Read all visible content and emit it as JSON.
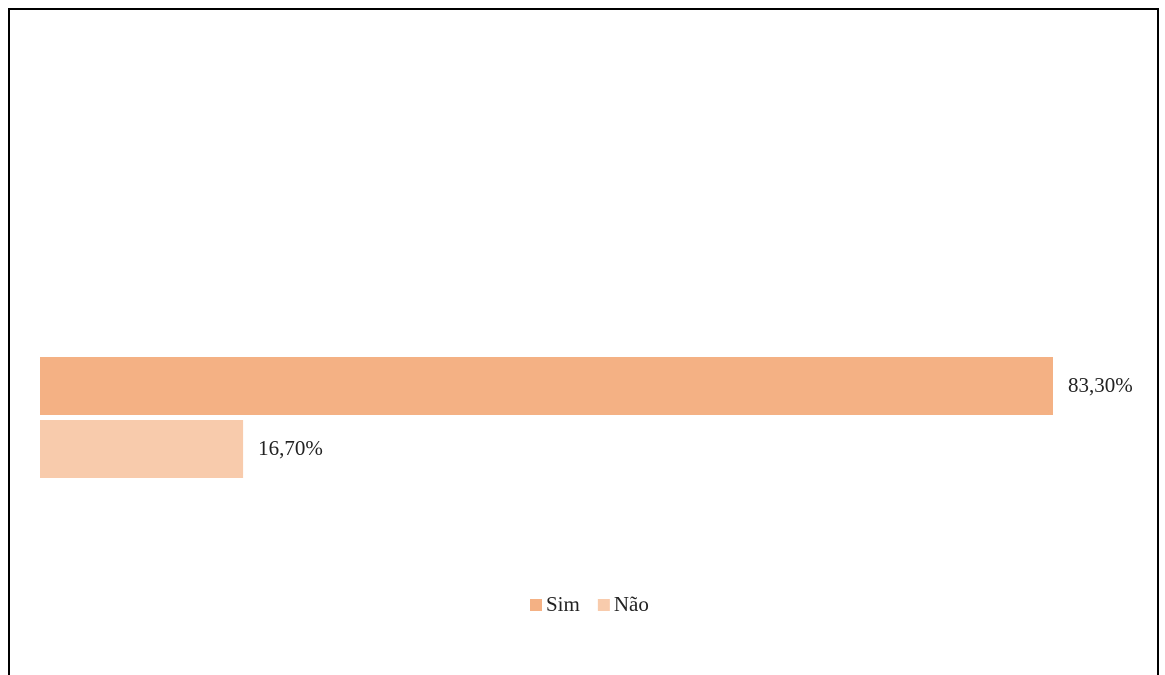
{
  "chart_data": {
    "type": "bar",
    "orientation": "horizontal",
    "categories": [
      null
    ],
    "series": [
      {
        "name": "Sim",
        "color": "#f4b183",
        "values": [
          83.3
        ],
        "value_labels": [
          "83,30%"
        ]
      },
      {
        "name": "Não",
        "color": "#f8cbad",
        "values": [
          16.7
        ],
        "value_labels": [
          "16,70%"
        ]
      }
    ],
    "legend": "bottom"
  }
}
